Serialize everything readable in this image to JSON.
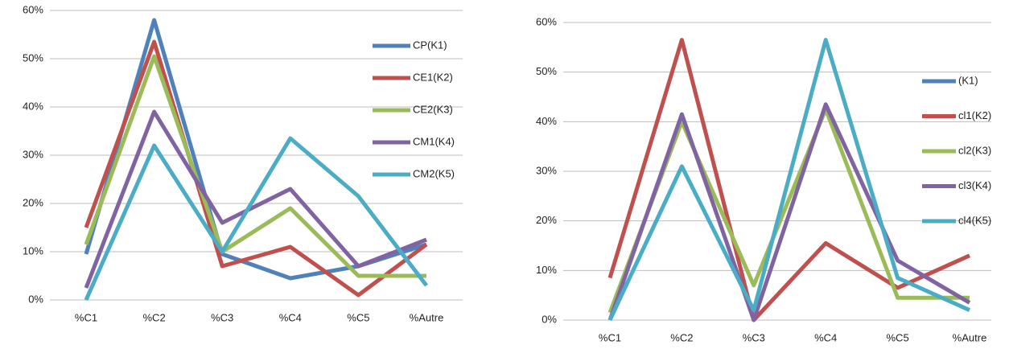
{
  "chart_data": [
    {
      "type": "line",
      "categories": [
        "%C1",
        "%C2",
        "%C3",
        "%C4",
        "%C5",
        "%Autre"
      ],
      "series": [
        {
          "name": "CP(K1)",
          "color": "#4f81bd",
          "values": [
            9.5,
            58,
            9.5,
            4.5,
            7,
            11.5
          ]
        },
        {
          "name": "CE1(K2)",
          "color": "#c0504d",
          "values": [
            15,
            53.5,
            7,
            11,
            1,
            11.5
          ]
        },
        {
          "name": "CE2(K3)",
          "color": "#9bbb59",
          "values": [
            11.5,
            50.5,
            10,
            19,
            5,
            5
          ]
        },
        {
          "name": "CM1(K4)",
          "color": "#8064a2",
          "values": [
            2.5,
            39,
            16,
            23,
            7,
            12.5
          ]
        },
        {
          "name": "CM2(K5)",
          "color": "#4bacc6",
          "values": [
            0,
            32,
            10,
            33.5,
            21.5,
            3
          ]
        }
      ],
      "ylim": [
        0,
        60
      ],
      "yticks": [
        {
          "value": 0,
          "label": "0%"
        },
        {
          "value": 10,
          "label": "10%"
        },
        {
          "value": 20,
          "label": "20%"
        },
        {
          "value": 30,
          "label": "30%"
        },
        {
          "value": 40,
          "label": "40%"
        },
        {
          "value": 50,
          "label": "50%"
        },
        {
          "value": 60,
          "label": "60%"
        }
      ],
      "grid": true,
      "legend": "right"
    },
    {
      "type": "line",
      "categories": [
        "%C1",
        "%C2",
        "%C3",
        "%C4",
        "%C5",
        "%Autre"
      ],
      "series": [
        {
          "name": "(K1)",
          "color": "#4f81bd",
          "values": [
            null,
            null,
            null,
            null,
            null,
            null
          ]
        },
        {
          "name": "cl1(K2)",
          "color": "#c0504d",
          "values": [
            8.5,
            56.5,
            0,
            15.5,
            6.5,
            13
          ]
        },
        {
          "name": "cl2(K3)",
          "color": "#9bbb59",
          "values": [
            1.5,
            40,
            7,
            42.5,
            4.5,
            4.5
          ]
        },
        {
          "name": "cl3(K4)",
          "color": "#8064a2",
          "values": [
            0,
            41.5,
            0,
            43.5,
            12,
            3.5
          ]
        },
        {
          "name": "cl4(K5)",
          "color": "#4bacc6",
          "values": [
            0,
            31,
            2,
            56.5,
            8.5,
            2
          ]
        }
      ],
      "ylim": [
        0,
        60
      ],
      "yticks": [
        {
          "value": 0,
          "label": "0%"
        },
        {
          "value": 10,
          "label": "10%"
        },
        {
          "value": 20,
          "label": "20%"
        },
        {
          "value": 30,
          "label": "30%"
        },
        {
          "value": 40,
          "label": "40%"
        },
        {
          "value": 50,
          "label": "50%"
        },
        {
          "value": 60,
          "label": "60%"
        }
      ],
      "grid": true,
      "legend": "right"
    }
  ]
}
